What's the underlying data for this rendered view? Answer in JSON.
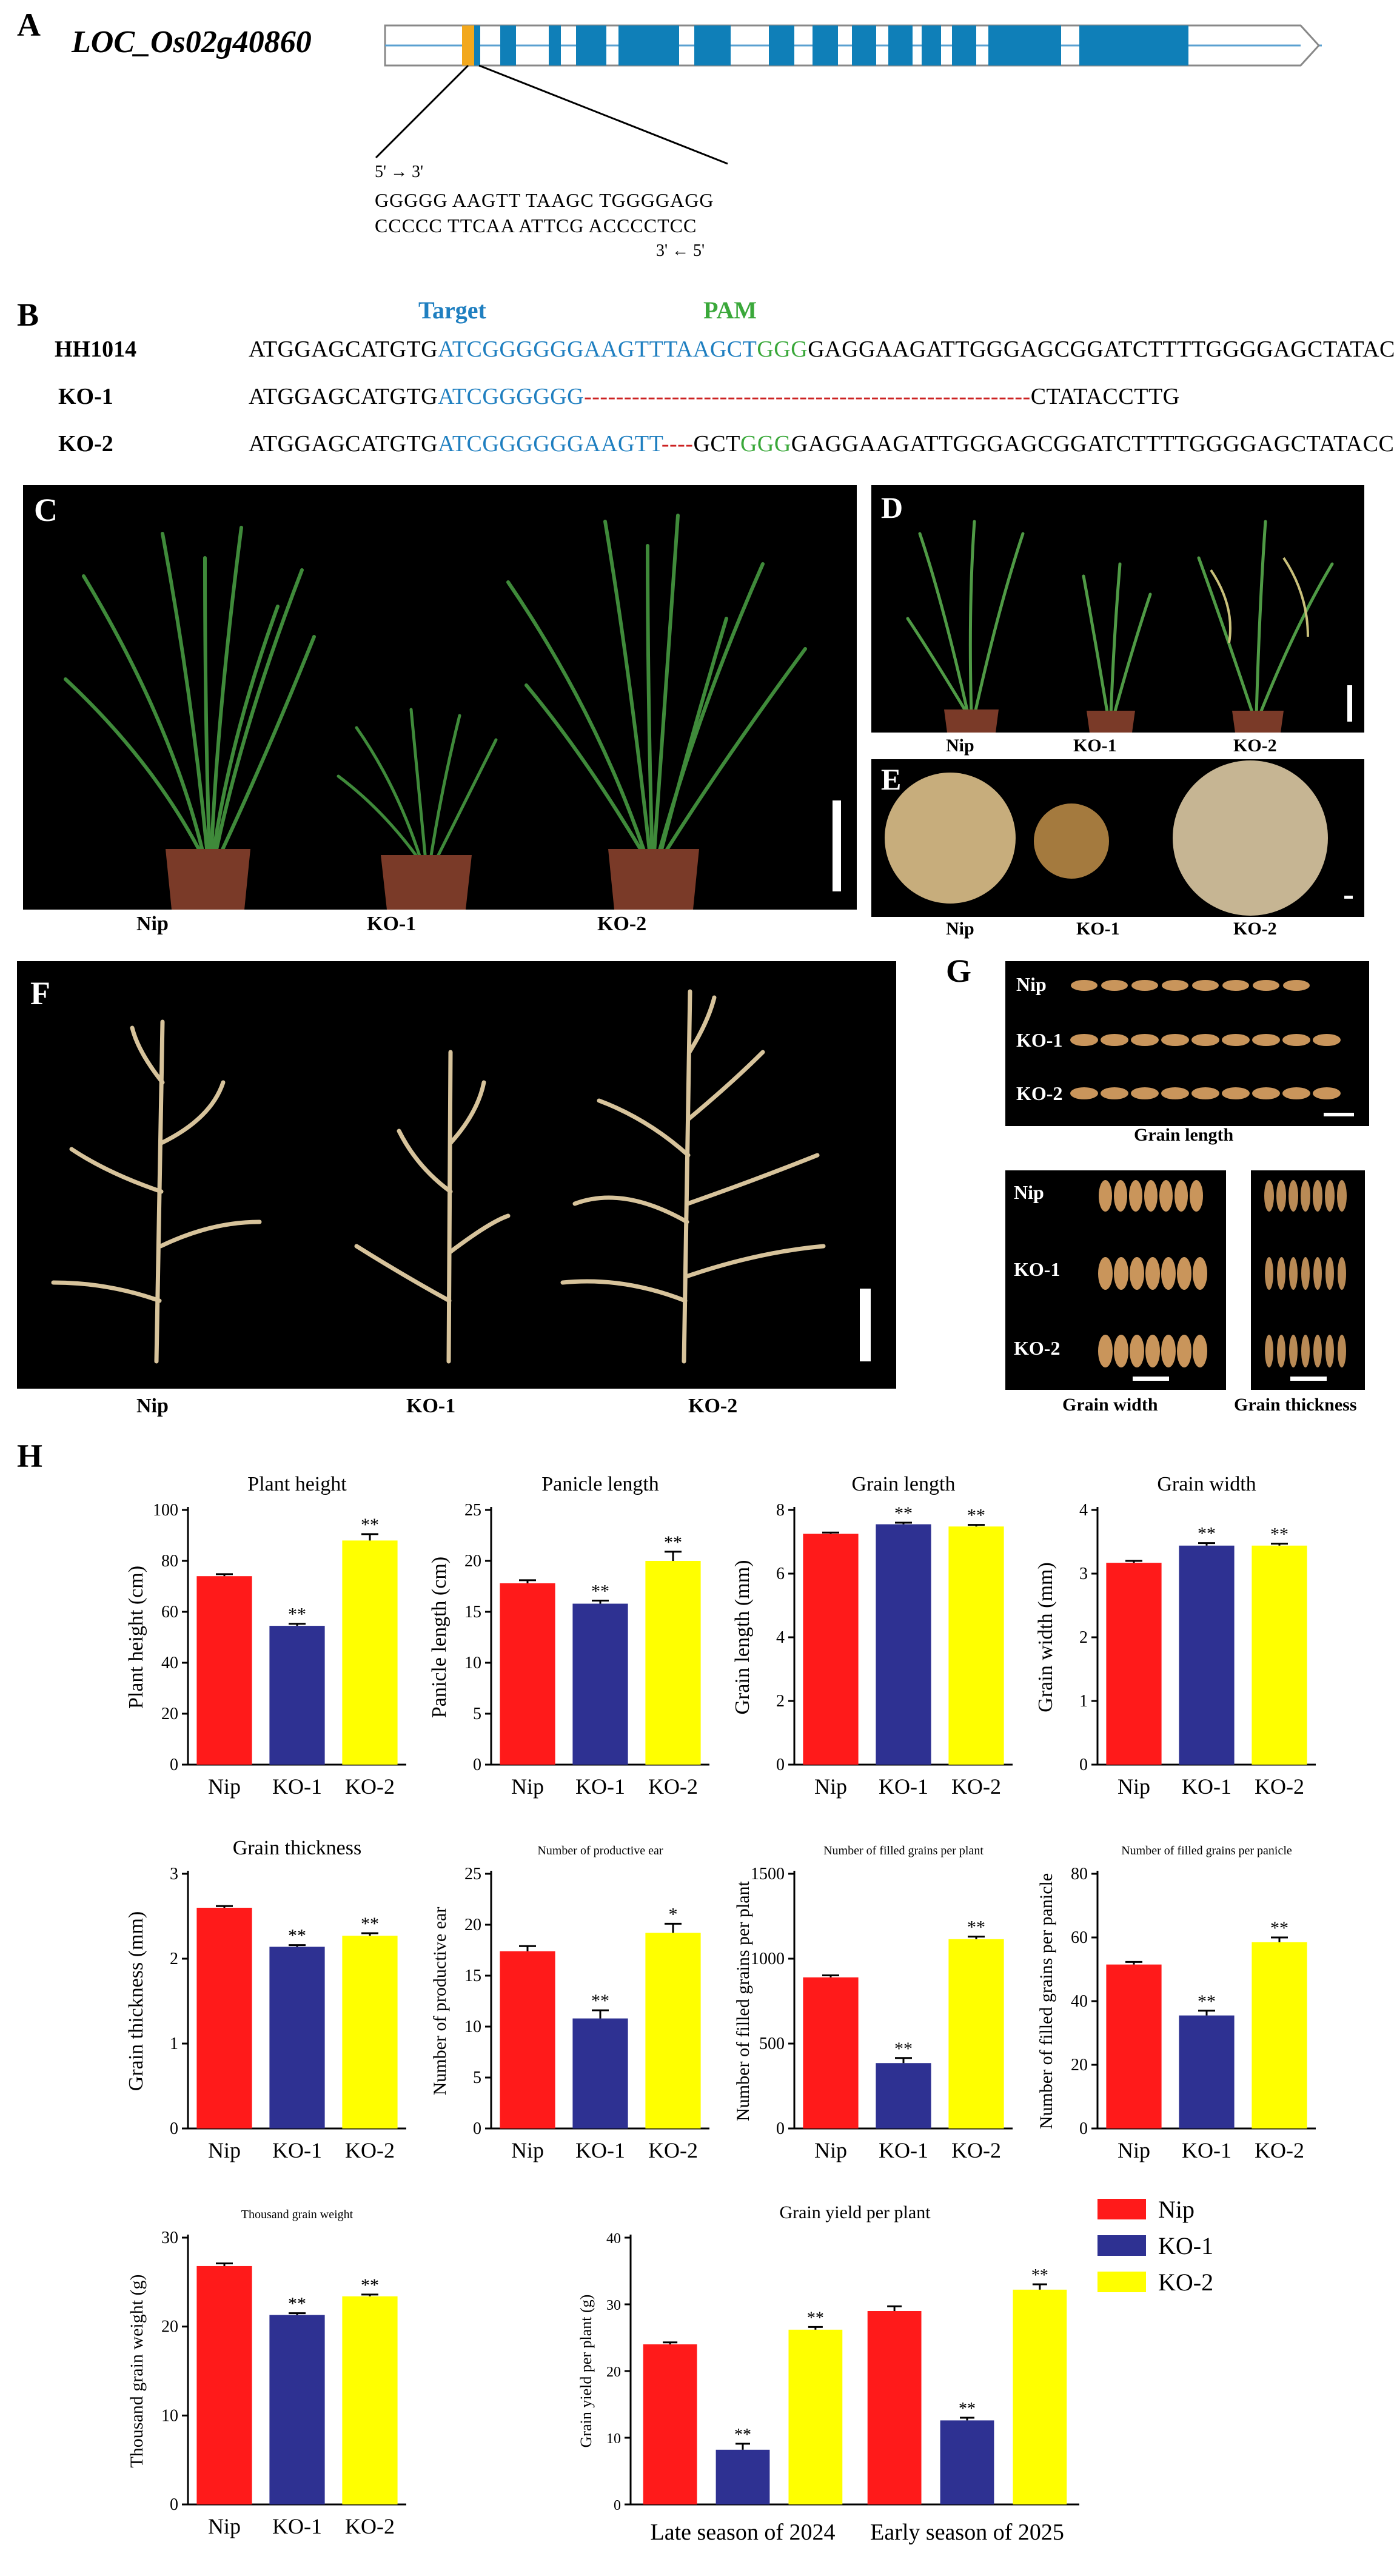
{
  "panel_letters": {
    "A": "A",
    "B": "B",
    "C": "C",
    "D": "D",
    "E": "E",
    "F": "F",
    "G": "G",
    "H": "H"
  },
  "gene_structure": {
    "gene_name": "LOC_Os02g40860",
    "top_strand_arrow": "5' → 3'",
    "top_seq": "GGGGG AAGTT TAAGC TGGGGAGG",
    "bottom_seq": "CCCCC TTCAA ATTCG ACCCCTCC",
    "bottom_strand_arrow": "3' ← 5'",
    "exon_color": "#0f7fb8",
    "target_color": "#f2a81d"
  },
  "sequence_alignment": {
    "target_label": "Target",
    "pam_label": "PAM",
    "rows": [
      {
        "label": "HH1014",
        "seg1": "ATGGAGCATGTG",
        "target": "ATCGGGGGGAAGTTTAAGCT",
        "pam": "GGG",
        "rest": "GAGGAAGATTGGGAGCGGATCTTTTGGGGAGCTATACCTTG"
      },
      {
        "label": "KO-1",
        "seg1": "ATGGAGCATGTG",
        "target": "ATCGGGGGG",
        "deletion": "--------------------------------------------------------",
        "rest": "CTATACCTTG"
      },
      {
        "label": "KO-2",
        "seg1": "ATGGAGCATGTG",
        "target": "ATCGGGGGGAAGTT",
        "deletion": "----",
        "mid": "GCT",
        "pam": "GGG",
        "rest": "GAGGAAGATTGGGAGCGGATCTTTTGGGGAGCTATACCTTG"
      }
    ]
  },
  "photo_labels": {
    "C": [
      "Nip",
      "KO-1",
      "KO-2"
    ],
    "D": [
      "Nip",
      "KO-1",
      "KO-2"
    ],
    "E": [
      "Nip",
      "KO-1",
      "KO-2"
    ],
    "F": [
      "Nip",
      "KO-1",
      "KO-2"
    ],
    "G_rows": [
      "Nip",
      "KO-1",
      "KO-2"
    ],
    "G_captions": [
      "Grain length",
      "Grain width",
      "Grain thickness"
    ]
  },
  "colors": {
    "Nip": "#ff1a1a",
    "KO-1": "#2e3192",
    "KO-2": "#ffff00"
  },
  "legend": [
    "Nip",
    "KO-1",
    "KO-2"
  ],
  "chart_data": [
    {
      "type": "bar",
      "title": "Plant height",
      "ylabel": "Plant height (cm)",
      "categories": [
        "Nip",
        "KO-1",
        "KO-2"
      ],
      "values": [
        74,
        54.5,
        88
      ],
      "errors": [
        0.8,
        0.8,
        2.5
      ],
      "sig": [
        "",
        "**",
        "**"
      ],
      "ylim": [
        0,
        100
      ],
      "yticks": [
        0,
        20,
        40,
        60,
        80,
        100
      ]
    },
    {
      "type": "bar",
      "title": "Panicle length",
      "ylabel": "Panicle length (cm)",
      "categories": [
        "Nip",
        "KO-1",
        "KO-2"
      ],
      "values": [
        17.8,
        15.8,
        20
      ],
      "errors": [
        0.3,
        0.3,
        0.9
      ],
      "sig": [
        "",
        "**",
        "**"
      ],
      "ylim": [
        0,
        25
      ],
      "yticks": [
        0,
        5,
        10,
        15,
        20,
        25
      ]
    },
    {
      "type": "bar",
      "title": "Grain length",
      "ylabel": "Grain length (mm)",
      "categories": [
        "Nip",
        "KO-1",
        "KO-2"
      ],
      "values": [
        7.25,
        7.55,
        7.48
      ],
      "errors": [
        0.04,
        0.05,
        0.05
      ],
      "sig": [
        "",
        "**",
        "**"
      ],
      "ylim": [
        0,
        8
      ],
      "yticks": [
        0,
        2,
        4,
        6,
        8
      ]
    },
    {
      "type": "bar",
      "title": "Grain width",
      "ylabel": "Grain width (mm)",
      "categories": [
        "Nip",
        "KO-1",
        "KO-2"
      ],
      "values": [
        3.17,
        3.44,
        3.44
      ],
      "errors": [
        0.03,
        0.04,
        0.03
      ],
      "sig": [
        "",
        "**",
        "**"
      ],
      "ylim": [
        0,
        4
      ],
      "yticks": [
        0,
        1,
        2,
        3,
        4
      ]
    },
    {
      "type": "bar",
      "title": "Grain thickness",
      "ylabel": "Grain thickness (mm)",
      "categories": [
        "Nip",
        "KO-1",
        "KO-2"
      ],
      "values": [
        2.6,
        2.14,
        2.27
      ],
      "errors": [
        0.02,
        0.02,
        0.03
      ],
      "sig": [
        "",
        "**",
        "**"
      ],
      "ylim": [
        0,
        3
      ],
      "yticks": [
        0,
        1,
        2,
        3
      ]
    },
    {
      "type": "bar",
      "title": "Number of productive ear",
      "ylabel": "Number of productive ear",
      "categories": [
        "Nip",
        "KO-1",
        "KO-2"
      ],
      "values": [
        17.4,
        10.8,
        19.2
      ],
      "errors": [
        0.5,
        0.8,
        0.9
      ],
      "sig": [
        "",
        "**",
        "*"
      ],
      "ylim": [
        0,
        25
      ],
      "yticks": [
        0,
        5,
        10,
        15,
        20,
        25
      ]
    },
    {
      "type": "bar",
      "title": "Number of filled grains per plant",
      "ylabel": "Number of filled grains per plant",
      "categories": [
        "Nip",
        "KO-1",
        "KO-2"
      ],
      "values": [
        890,
        385,
        1115
      ],
      "errors": [
        12,
        30,
        15
      ],
      "sig": [
        "",
        "**",
        "**"
      ],
      "ylim": [
        0,
        1500
      ],
      "yticks": [
        0,
        500,
        1000,
        1500
      ]
    },
    {
      "type": "bar",
      "title": "Number of filled grains per panicle",
      "ylabel": "Number of filled grains per panicle",
      "categories": [
        "Nip",
        "KO-1",
        "KO-2"
      ],
      "values": [
        51.5,
        35.5,
        58.5
      ],
      "errors": [
        0.8,
        1.5,
        1.5
      ],
      "sig": [
        "",
        "**",
        "**"
      ],
      "ylim": [
        0,
        80
      ],
      "yticks": [
        0,
        20,
        40,
        60,
        80
      ]
    },
    {
      "type": "bar",
      "title": "Thousand grain weight",
      "ylabel": "Thousand grain weight (g)",
      "categories": [
        "Nip",
        "KO-1",
        "KO-2"
      ],
      "values": [
        26.8,
        21.3,
        23.4
      ],
      "errors": [
        0.3,
        0.2,
        0.2
      ],
      "sig": [
        "",
        "**",
        "**"
      ],
      "ylim": [
        0,
        30
      ],
      "yticks": [
        0,
        10,
        20,
        30
      ]
    },
    {
      "type": "bar",
      "title": "Grain yield per plant",
      "ylabel": "Grain yield per plant (g)",
      "categories": [
        "Late season of 2024",
        "Early season of 2025"
      ],
      "series": [
        {
          "name": "Nip",
          "values": [
            24,
            29
          ],
          "errors": [
            0.3,
            0.7
          ],
          "sig": [
            "",
            ""
          ]
        },
        {
          "name": "KO-1",
          "values": [
            8.2,
            12.6
          ],
          "errors": [
            0.9,
            0.4
          ],
          "sig": [
            "**",
            "**"
          ]
        },
        {
          "name": "KO-2",
          "values": [
            26.2,
            32.2
          ],
          "errors": [
            0.4,
            0.8
          ],
          "sig": [
            "**",
            "**"
          ]
        }
      ],
      "ylim": [
        0,
        40
      ],
      "yticks": [
        0,
        10,
        20,
        30,
        40
      ]
    }
  ]
}
